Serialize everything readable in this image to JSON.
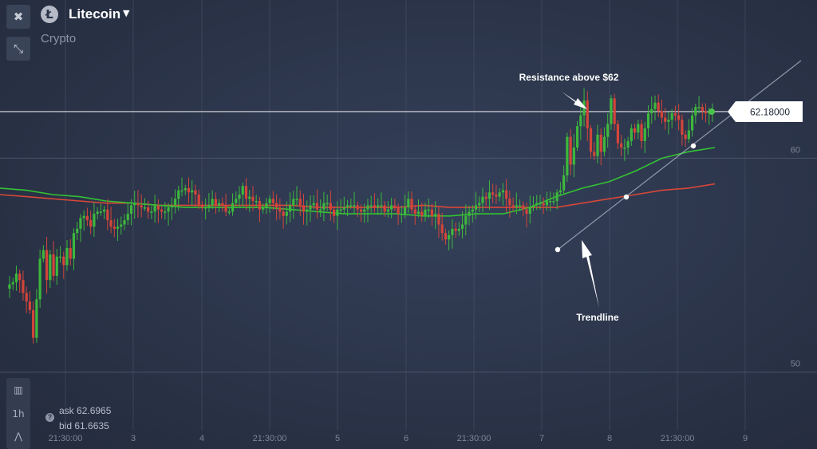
{
  "header": {
    "asset_name": "Litecoin",
    "asset_logo": "Ł",
    "asset_category": "Crypto",
    "close_icon": "close-icon",
    "shrink_icon": "shrink-icon"
  },
  "sidebar": {
    "candles_icon": "candles-icon",
    "timeframe": "1h",
    "draw_icon": "draw-icon"
  },
  "quote": {
    "ask_label": "ask",
    "ask": "62.6965",
    "bid_label": "bid",
    "bid": "61.6635"
  },
  "colors": {
    "background": "#2a3347",
    "up_candle": "#3db83d",
    "down_candle": "#d4453a",
    "ma_fast": "#33c233",
    "ma_slow": "#d9473a",
    "price_line": "#ffffff"
  },
  "chart_data": {
    "type": "candlestick",
    "x_tick_labels": [
      "21:30:00",
      "3",
      "4",
      "21:30:00",
      "5",
      "6",
      "21:30:00",
      "7",
      "8",
      "21:30:00",
      "9"
    ],
    "y_tick_labels": [
      "60",
      "50"
    ],
    "current_price": "62.18000",
    "annotations": {
      "resistance": "Resistance above $62",
      "trendline": "Trendline"
    },
    "ylim": [
      46.4,
      67.4
    ],
    "candle_closes": [
      54.1,
      54.2,
      54.6,
      54.3,
      53.7,
      53.3,
      52.9,
      51.6,
      53.4,
      55.3,
      55.7,
      54.3,
      55.5,
      54.5,
      55.4,
      55.4,
      55.0,
      55.8,
      55.3,
      56.5,
      56.7,
      57.2,
      57.3,
      57.1,
      56.8,
      57.4,
      57.5,
      57.5,
      57.6,
      57.1,
      56.8,
      56.7,
      56.8,
      56.9,
      57.1,
      57.4,
      57.8,
      57.9,
      57.8,
      57.7,
      57.7,
      57.5,
      57.5,
      57.8,
      57.6,
      57.5,
      57.5,
      57.7,
      57.8,
      58.1,
      58.5,
      58.5,
      58.6,
      58.4,
      58.5,
      58.3,
      57.8,
      57.7,
      57.7,
      57.8,
      58.1,
      57.8,
      57.9,
      57.8,
      57.5,
      57.5,
      57.9,
      58.1,
      58.3,
      58.7,
      58.1,
      58.2,
      58.0,
      58.0,
      57.6,
      57.7,
      57.9,
      58.1,
      57.9,
      57.7,
      57.5,
      57.3,
      57.5,
      57.8,
      58.1,
      58.1,
      57.8,
      57.5,
      57.6,
      57.8,
      57.9,
      57.6,
      57.6,
      57.9,
      57.9,
      57.6,
      57.3,
      57.6,
      57.6,
      57.7,
      57.8,
      57.8,
      57.8,
      57.6,
      57.5,
      57.6,
      57.8,
      57.8,
      57.7,
      57.8,
      57.8,
      57.5,
      57.6,
      57.8,
      57.7,
      57.4,
      57.4,
      57.7,
      58.1,
      57.6,
      57.4,
      57.5,
      57.3,
      57.6,
      57.6,
      57.3,
      57.4,
      56.9,
      56.5,
      56.2,
      56.4,
      56.7,
      56.6,
      56.7,
      56.9,
      57.3,
      57.5,
      57.6,
      57.8,
      57.9,
      58.2,
      58.1,
      58.4,
      58.3,
      58.2,
      58.4,
      58.5,
      58.1,
      57.8,
      57.7,
      57.8,
      57.8,
      57.6,
      57.4,
      57.7,
      57.8,
      57.9,
      57.9,
      57.8,
      58.0,
      58.0,
      58.0,
      58.4,
      58.5,
      59.2,
      61.0,
      59.7,
      60.5,
      61.5,
      62.0,
      62.7,
      61.4,
      60.3,
      60.1,
      61.1,
      60.3,
      61.0,
      61.6,
      62.8,
      61.6,
      60.7,
      60.5,
      60.5,
      60.8,
      61.4,
      61.2,
      61.6,
      60.8,
      61.4,
      62.1,
      62.3,
      62.6,
      62.2,
      61.9,
      61.7,
      61.8,
      62.1,
      62.0,
      61.8,
      61.1,
      60.9,
      61.3,
      62.0,
      62.4,
      62.4,
      62.2,
      62.1,
      62.2,
      62.2
    ],
    "ma_fast": [
      58.6,
      58.5,
      58.3,
      58.2,
      58.0,
      57.9,
      57.8,
      57.7,
      57.7,
      57.7,
      57.7,
      57.6,
      57.5,
      57.4,
      57.4,
      57.4,
      57.3,
      57.3,
      57.4,
      57.4,
      57.7,
      58.2,
      58.6,
      58.9,
      59.4,
      60.0,
      60.3,
      60.5
    ],
    "ma_slow": [
      58.3,
      58.2,
      58.1,
      58.0,
      57.9,
      57.9,
      57.8,
      57.8,
      57.8,
      57.8,
      57.8,
      57.8,
      57.7,
      57.7,
      57.7,
      57.7,
      57.8,
      57.7,
      57.7,
      57.7,
      57.7,
      57.7,
      57.9,
      58.1,
      58.3,
      58.5,
      58.6,
      58.8
    ]
  }
}
